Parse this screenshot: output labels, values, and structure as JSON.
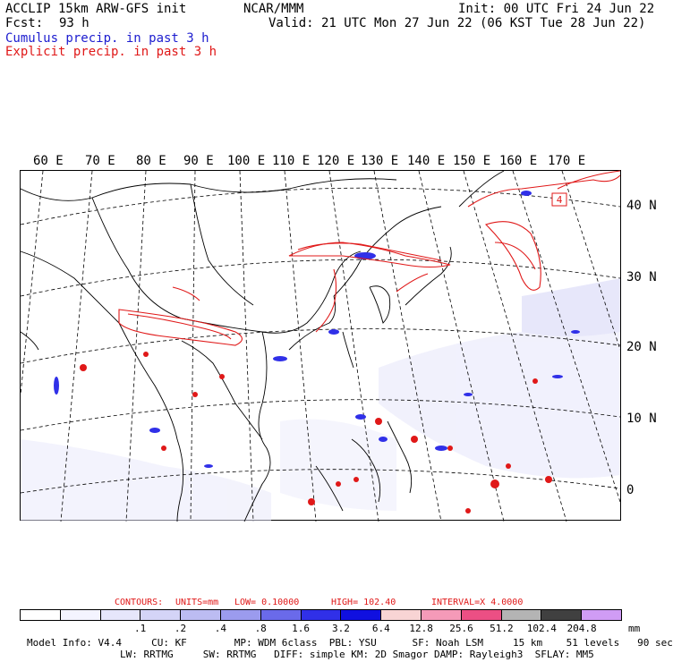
{
  "header": {
    "model_title": "ACCLIP 15km ARW-GFS init",
    "center": "NCAR/MMM",
    "init_line": "Init: 00 UTC Fri 24 Jun 22",
    "fcst_label": "Fcst:",
    "fcst_value": "93 h",
    "valid_line": "Valid: 21 UTC Mon 27 Jun 22 (06 KST Tue 28 Jun 22)",
    "cumulus_label": "Cumulus precip. in past 3 h",
    "explicit_label": "Explicit precip. in past 3 h"
  },
  "map": {
    "lon_labels": [
      "60 E",
      "70 E",
      "80 E",
      "90 E",
      "100 E",
      "110 E",
      "120 E",
      "130 E",
      "140 E",
      "150 E",
      "160 E",
      "170 E"
    ],
    "lat_labels": [
      "40 N",
      "30 N",
      "20 N",
      "10 N",
      "0"
    ],
    "box_marker": "4",
    "colors": {
      "cumulus": "#1c1ccf",
      "explicit": "#e01818",
      "coast": "#000000"
    }
  },
  "contours": {
    "label": "CONTOURS:",
    "units": "UNITS=mm",
    "low": "LOW= 0.10000",
    "high": "HIGH= 102.40",
    "interval": "INTERVAL=X 4.0000"
  },
  "legend": {
    "colors": [
      "#ffffff",
      "#f4f4ff",
      "#e6e6fb",
      "#d4d4f7",
      "#bcbcf2",
      "#9b9bee",
      "#6a6aea",
      "#3030e8",
      "#1010e0",
      "#f8d4d4",
      "#f59ab8",
      "#ec4f84",
      "#b4b4b4",
      "#404040",
      "#d09cf5"
    ],
    "ticks": [
      ".1",
      ".2",
      ".4",
      ".8",
      "1.6",
      "3.2",
      "6.4",
      "12.8",
      "25.6",
      "51.2",
      "102.4",
      "204.8"
    ],
    "units": "mm"
  },
  "model_info": {
    "line1": "Model Info: V4.4     CU: KF        MP: WDM 6class  PBL: YSU      SF: Noah LSM     15 km    51 levels   90 sec",
    "line2": "LW: RRTMG     SW: RRTMG   DIFF: simple KM: 2D Smagor DAMP: Rayleigh3  SFLAY: MM5"
  }
}
